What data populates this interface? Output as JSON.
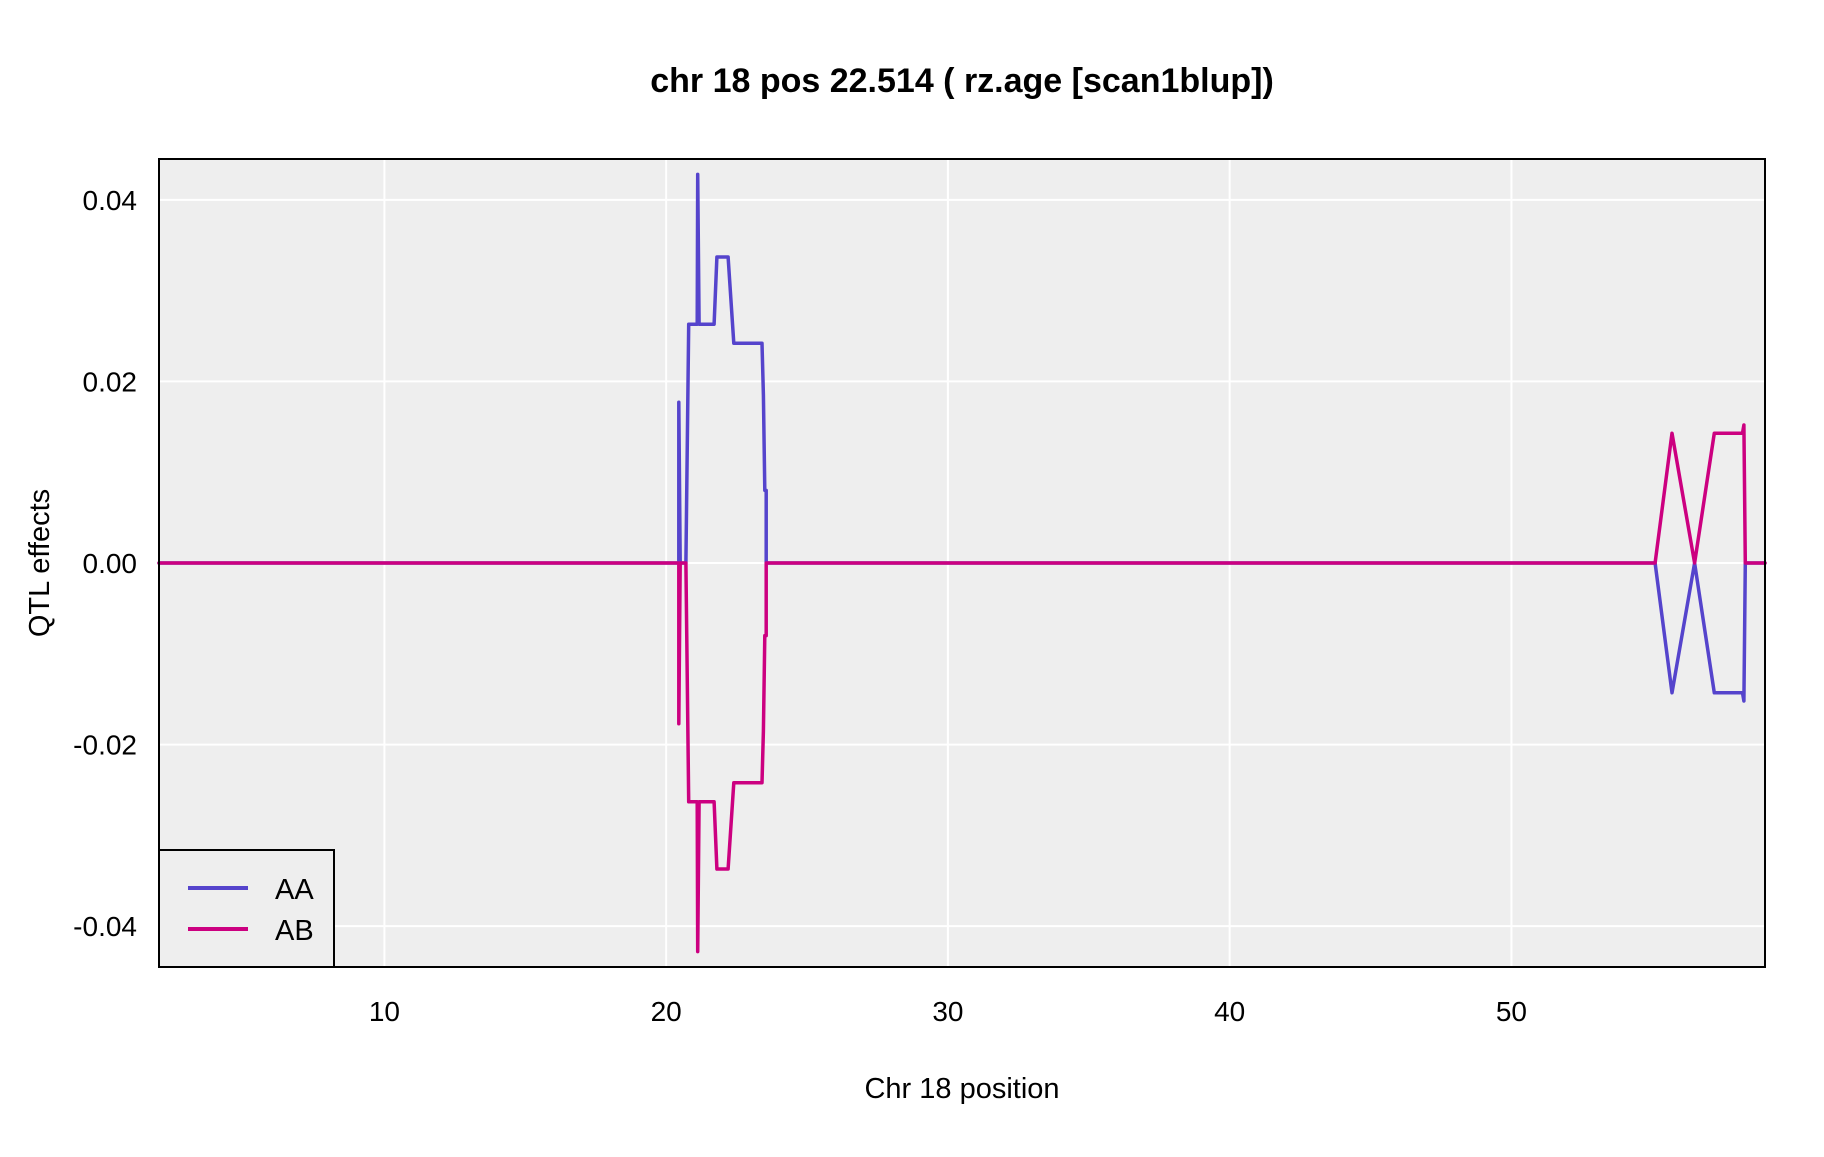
{
  "chart_data": {
    "type": "line",
    "title": "chr 18 pos 22.514 ( rz.age  [scan1blup])",
    "xlabel": "Chr 18 position",
    "ylabel": "QTL effects",
    "xlim": [
      2,
      59
    ],
    "ylim": [
      -0.0445,
      0.0445
    ],
    "xticks": [
      10,
      20,
      30,
      40,
      50
    ],
    "xtick_labels": [
      "10",
      "20",
      "30",
      "40",
      "50"
    ],
    "yticks": [
      0.04,
      0.02,
      0.0,
      -0.02,
      -0.04
    ],
    "ytick_labels": [
      "0.04",
      "0.02",
      "0.00",
      "-0.02",
      "-0.04"
    ],
    "grid": true,
    "legend_position": "bottom-left",
    "colors": {
      "panel_background": "#eeeeee",
      "grid": "#ffffff",
      "AA": "#5544cc",
      "AB": "#cc0080"
    },
    "series": [
      {
        "name": "AA",
        "color": "#5544cc",
        "x": [
          2.0,
          20.4,
          20.45,
          20.45,
          20.5,
          20.7,
          20.8,
          20.9,
          21.1,
          21.12,
          21.17,
          21.22,
          21.27,
          21.3,
          21.7,
          21.8,
          22.2,
          22.4,
          22.6,
          23.4,
          23.45,
          23.5,
          23.55,
          23.55,
          23.6,
          55.1,
          55.7,
          56.5,
          57.2,
          58.15,
          58.2,
          58.25,
          58.3,
          58.4,
          59.0
        ],
        "values": [
          0.0,
          0.0,
          0.0,
          0.0177,
          0.0,
          0.0,
          0.0263,
          0.0263,
          0.0263,
          0.0428,
          0.0263,
          0.0263,
          0.0263,
          0.0263,
          0.0263,
          0.0337,
          0.0337,
          0.0242,
          0.0242,
          0.0242,
          0.0185,
          0.008,
          0.008,
          0.0,
          0.0,
          0.0,
          -0.0143,
          0.0,
          -0.0143,
          -0.0143,
          -0.0143,
          -0.0152,
          0.0,
          0.0,
          0.0
        ]
      },
      {
        "name": "AB",
        "color": "#cc0080",
        "x": [
          2.0,
          20.4,
          20.45,
          20.45,
          20.5,
          20.7,
          20.8,
          20.9,
          21.1,
          21.12,
          21.17,
          21.22,
          21.27,
          21.3,
          21.7,
          21.8,
          22.2,
          22.4,
          22.6,
          23.4,
          23.45,
          23.5,
          23.55,
          23.55,
          23.6,
          55.1,
          55.7,
          56.5,
          57.2,
          58.15,
          58.2,
          58.25,
          58.3,
          58.4,
          59.0
        ],
        "values": [
          0.0,
          0.0,
          0.0,
          -0.0177,
          0.0,
          0.0,
          -0.0263,
          -0.0263,
          -0.0263,
          -0.0428,
          -0.0263,
          -0.0263,
          -0.0263,
          -0.0263,
          -0.0263,
          -0.0337,
          -0.0337,
          -0.0242,
          -0.0242,
          -0.0242,
          -0.0185,
          -0.008,
          -0.008,
          0.0,
          0.0,
          0.0,
          0.0143,
          0.0,
          0.0143,
          0.0143,
          0.0143,
          0.0152,
          0.0,
          0.0,
          0.0
        ]
      }
    ]
  }
}
